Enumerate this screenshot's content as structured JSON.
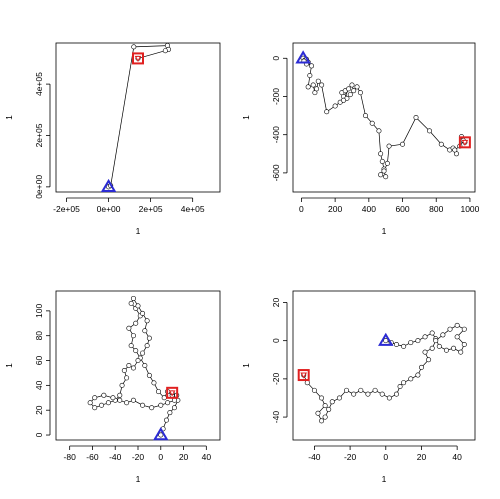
{
  "chart_data": [
    {
      "type": "line",
      "xlabel": "1",
      "ylabel": "1",
      "xlim": [
        -250000,
        530000
      ],
      "ylim": [
        -20000,
        560000
      ],
      "xticks": [
        -200000,
        0,
        200000,
        400000
      ],
      "xtick_labels": [
        "-2e+05",
        "0e+00",
        "2e+05",
        "4e+05"
      ],
      "yticks": [
        0,
        200000,
        400000
      ],
      "ytick_labels": [
        "0e+00",
        "2e+05",
        "4e+05"
      ],
      "points": [
        [
          0,
          0
        ],
        [
          10000,
          5000
        ],
        [
          120000,
          545000
        ],
        [
          280000,
          550000
        ],
        [
          285000,
          535000
        ],
        [
          270000,
          530000
        ],
        [
          140000,
          500000
        ]
      ],
      "start": [
        0,
        0
      ],
      "end": [
        140000,
        500000
      ],
      "start_marker": "blue-triangle",
      "end_marker": "red-square",
      "colors": {
        "start": "#2b2bd4",
        "end": "#e02020",
        "line": "#000000"
      }
    },
    {
      "type": "line",
      "xlabel": "1",
      "ylabel": "1",
      "xlim": [
        -50,
        1030
      ],
      "ylim": [
        -700,
        80
      ],
      "xticks": [
        0,
        200,
        400,
        600,
        800,
        1000
      ],
      "xtick_labels": [
        "0",
        "200",
        "400",
        "600",
        "800",
        "1000"
      ],
      "yticks": [
        -600,
        -400,
        -200,
        0
      ],
      "ytick_labels": [
        "-600",
        "-400",
        "-200",
        "0"
      ],
      "points": [
        [
          10,
          0
        ],
        [
          20,
          -10
        ],
        [
          30,
          -5
        ],
        [
          40,
          -20
        ],
        [
          30,
          -30
        ],
        [
          15,
          -15
        ],
        [
          60,
          -40
        ],
        [
          50,
          -90
        ],
        [
          40,
          -150
        ],
        [
          70,
          -140
        ],
        [
          80,
          -180
        ],
        [
          90,
          -160
        ],
        [
          100,
          -120
        ],
        [
          120,
          -140
        ],
        [
          150,
          -280
        ],
        [
          200,
          -250
        ],
        [
          230,
          -230
        ],
        [
          250,
          -200
        ],
        [
          240,
          -180
        ],
        [
          260,
          -170
        ],
        [
          270,
          -210
        ],
        [
          250,
          -220
        ],
        [
          280,
          -160
        ],
        [
          300,
          -140
        ],
        [
          310,
          -170
        ],
        [
          290,
          -190
        ],
        [
          330,
          -150
        ],
        [
          350,
          -180
        ],
        [
          380,
          -300
        ],
        [
          420,
          -340
        ],
        [
          460,
          -380
        ],
        [
          470,
          -500
        ],
        [
          480,
          -540
        ],
        [
          490,
          -580
        ],
        [
          470,
          -610
        ],
        [
          500,
          -620
        ],
        [
          490,
          -590
        ],
        [
          510,
          -550
        ],
        [
          520,
          -460
        ],
        [
          600,
          -450
        ],
        [
          680,
          -310
        ],
        [
          760,
          -380
        ],
        [
          830,
          -450
        ],
        [
          880,
          -480
        ],
        [
          900,
          -470
        ],
        [
          920,
          -500
        ],
        [
          910,
          -480
        ],
        [
          940,
          -460
        ],
        [
          960,
          -430
        ],
        [
          950,
          -410
        ],
        [
          970,
          -440
        ]
      ],
      "start": [
        10,
        0
      ],
      "end": [
        970,
        -440
      ],
      "start_marker": "blue-triangle",
      "end_marker": "red-square",
      "colors": {
        "start": "#2b2bd4",
        "end": "#e02020",
        "line": "#000000"
      }
    },
    {
      "type": "line",
      "xlabel": "1",
      "ylabel": "1",
      "xlim": [
        -92,
        52
      ],
      "ylim": [
        -4,
        116
      ],
      "xticks": [
        -80,
        -60,
        -40,
        -20,
        0,
        20,
        40
      ],
      "xtick_labels": [
        "-80",
        "-60",
        "-40",
        "-20",
        "0",
        "20",
        "40"
      ],
      "yticks": [
        0,
        20,
        40,
        60,
        80,
        100
      ],
      "ytick_labels": [
        "0",
        "20",
        "40",
        "60",
        "80",
        "100"
      ],
      "points": [
        [
          0,
          0
        ],
        [
          2,
          5
        ],
        [
          5,
          12
        ],
        [
          8,
          18
        ],
        [
          12,
          22
        ],
        [
          15,
          28
        ],
        [
          10,
          32
        ],
        [
          6,
          35
        ],
        [
          3,
          30
        ],
        [
          -2,
          35
        ],
        [
          -6,
          42
        ],
        [
          -10,
          48
        ],
        [
          -14,
          56
        ],
        [
          -18,
          62
        ],
        [
          -22,
          68
        ],
        [
          -26,
          72
        ],
        [
          -24,
          80
        ],
        [
          -28,
          86
        ],
        [
          -22,
          90
        ],
        [
          -18,
          96
        ],
        [
          -22,
          102
        ],
        [
          -26,
          106
        ],
        [
          -24,
          110
        ],
        [
          -20,
          104
        ],
        [
          -16,
          98
        ],
        [
          -12,
          92
        ],
        [
          -14,
          84
        ],
        [
          -10,
          78
        ],
        [
          -12,
          72
        ],
        [
          -16,
          66
        ],
        [
          -20,
          60
        ],
        [
          -24,
          54
        ],
        [
          -28,
          56
        ],
        [
          -32,
          52
        ],
        [
          -30,
          46
        ],
        [
          -34,
          40
        ],
        [
          -36,
          32
        ],
        [
          -40,
          28
        ],
        [
          -46,
          26
        ],
        [
          -52,
          24
        ],
        [
          -58,
          22
        ],
        [
          -62,
          26
        ],
        [
          -58,
          30
        ],
        [
          -50,
          32
        ],
        [
          -42,
          30
        ],
        [
          -36,
          28
        ],
        [
          -30,
          26
        ],
        [
          -24,
          28
        ],
        [
          -16,
          24
        ],
        [
          -8,
          22
        ],
        [
          0,
          24
        ],
        [
          6,
          26
        ],
        [
          12,
          28
        ],
        [
          14,
          32
        ],
        [
          10,
          34
        ]
      ],
      "start": [
        0,
        0
      ],
      "end": [
        10,
        34
      ],
      "start_marker": "blue-triangle",
      "end_marker": "red-square",
      "colors": {
        "start": "#2b2bd4",
        "end": "#e02020",
        "line": "#000000"
      }
    },
    {
      "type": "line",
      "xlabel": "1",
      "ylabel": "1",
      "xlim": [
        -52,
        50
      ],
      "ylim": [
        -52,
        26
      ],
      "xticks": [
        -40,
        -20,
        0,
        20,
        40
      ],
      "xtick_labels": [
        "-40",
        "-20",
        "0",
        "20",
        "40"
      ],
      "yticks": [
        -40,
        -20,
        0,
        20
      ],
      "ytick_labels": [
        "-40",
        "-20",
        "0",
        "20"
      ],
      "points": [
        [
          0,
          0
        ],
        [
          3,
          -1
        ],
        [
          6,
          -2
        ],
        [
          10,
          -3
        ],
        [
          14,
          -1
        ],
        [
          18,
          0
        ],
        [
          22,
          2
        ],
        [
          26,
          4
        ],
        [
          28,
          1
        ],
        [
          30,
          -3
        ],
        [
          34,
          -5
        ],
        [
          38,
          -4
        ],
        [
          42,
          -6
        ],
        [
          44,
          -2
        ],
        [
          40,
          2
        ],
        [
          44,
          6
        ],
        [
          40,
          8
        ],
        [
          36,
          6
        ],
        [
          32,
          3
        ],
        [
          28,
          0
        ],
        [
          26,
          -4
        ],
        [
          22,
          -6
        ],
        [
          24,
          -10
        ],
        [
          20,
          -14
        ],
        [
          18,
          -18
        ],
        [
          14,
          -20
        ],
        [
          10,
          -22
        ],
        [
          8,
          -24
        ],
        [
          6,
          -28
        ],
        [
          2,
          -30
        ],
        [
          -2,
          -28
        ],
        [
          -6,
          -26
        ],
        [
          -10,
          -28
        ],
        [
          -14,
          -26
        ],
        [
          -18,
          -28
        ],
        [
          -22,
          -26
        ],
        [
          -26,
          -30
        ],
        [
          -30,
          -32
        ],
        [
          -32,
          -36
        ],
        [
          -34,
          -40
        ],
        [
          -36,
          -42
        ],
        [
          -38,
          -38
        ],
        [
          -34,
          -34
        ],
        [
          -36,
          -30
        ],
        [
          -40,
          -26
        ],
        [
          -44,
          -22
        ],
        [
          -46,
          -18
        ]
      ],
      "start": [
        0,
        0
      ],
      "end": [
        -46,
        -18
      ],
      "start_marker": "blue-triangle",
      "end_marker": "red-square",
      "colors": {
        "start": "#2b2bd4",
        "end": "#e02020",
        "line": "#000000"
      }
    }
  ]
}
